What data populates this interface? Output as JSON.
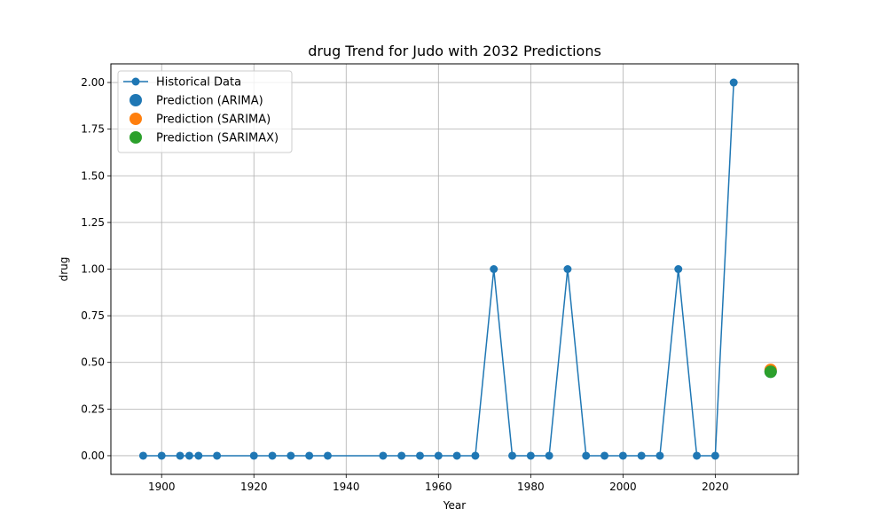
{
  "chart_data": {
    "type": "line",
    "title": "drug Trend for Judo with 2032 Predictions",
    "xlabel": "Year",
    "ylabel": "drug",
    "xlim": [
      1889,
      2038
    ],
    "ylim": [
      -0.1,
      2.1
    ],
    "xticks": [
      1900,
      1920,
      1940,
      1960,
      1980,
      2000,
      2020
    ],
    "xtick_labels": [
      "1900",
      "1920",
      "1940",
      "1960",
      "1980",
      "2000",
      "2020"
    ],
    "yticks": [
      0.0,
      0.25,
      0.5,
      0.75,
      1.0,
      1.25,
      1.5,
      1.75,
      2.0
    ],
    "ytick_labels": [
      "0.00",
      "0.25",
      "0.50",
      "0.75",
      "1.00",
      "1.25",
      "1.50",
      "1.75",
      "2.00"
    ],
    "grid": true,
    "legend_position": "top-left",
    "series": [
      {
        "name": "Historical Data",
        "kind": "line-marker",
        "color": "#1f77b4",
        "x": [
          1896,
          1900,
          1904,
          1906,
          1908,
          1912,
          1920,
          1924,
          1928,
          1932,
          1936,
          1948,
          1952,
          1956,
          1960,
          1964,
          1968,
          1972,
          1976,
          1980,
          1984,
          1988,
          1992,
          1996,
          2000,
          2004,
          2008,
          2012,
          2016,
          2020,
          2024
        ],
        "y": [
          0,
          0,
          0,
          0,
          0,
          0,
          0,
          0,
          0,
          0,
          0,
          0,
          0,
          0,
          0,
          0,
          0,
          1,
          0,
          0,
          0,
          1,
          0,
          0,
          0,
          0,
          0,
          1,
          0,
          0,
          2
        ]
      },
      {
        "name": "Prediction (ARIMA)",
        "kind": "point",
        "color": "#1f77b4",
        "x": [
          2032
        ],
        "y": [
          0.45
        ]
      },
      {
        "name": "Prediction (SARIMA)",
        "kind": "point",
        "color": "#ff7f0e",
        "x": [
          2032
        ],
        "y": [
          0.46
        ]
      },
      {
        "name": "Prediction (SARIMAX)",
        "kind": "point",
        "color": "#2ca02c",
        "x": [
          2032
        ],
        "y": [
          0.45
        ]
      }
    ]
  }
}
